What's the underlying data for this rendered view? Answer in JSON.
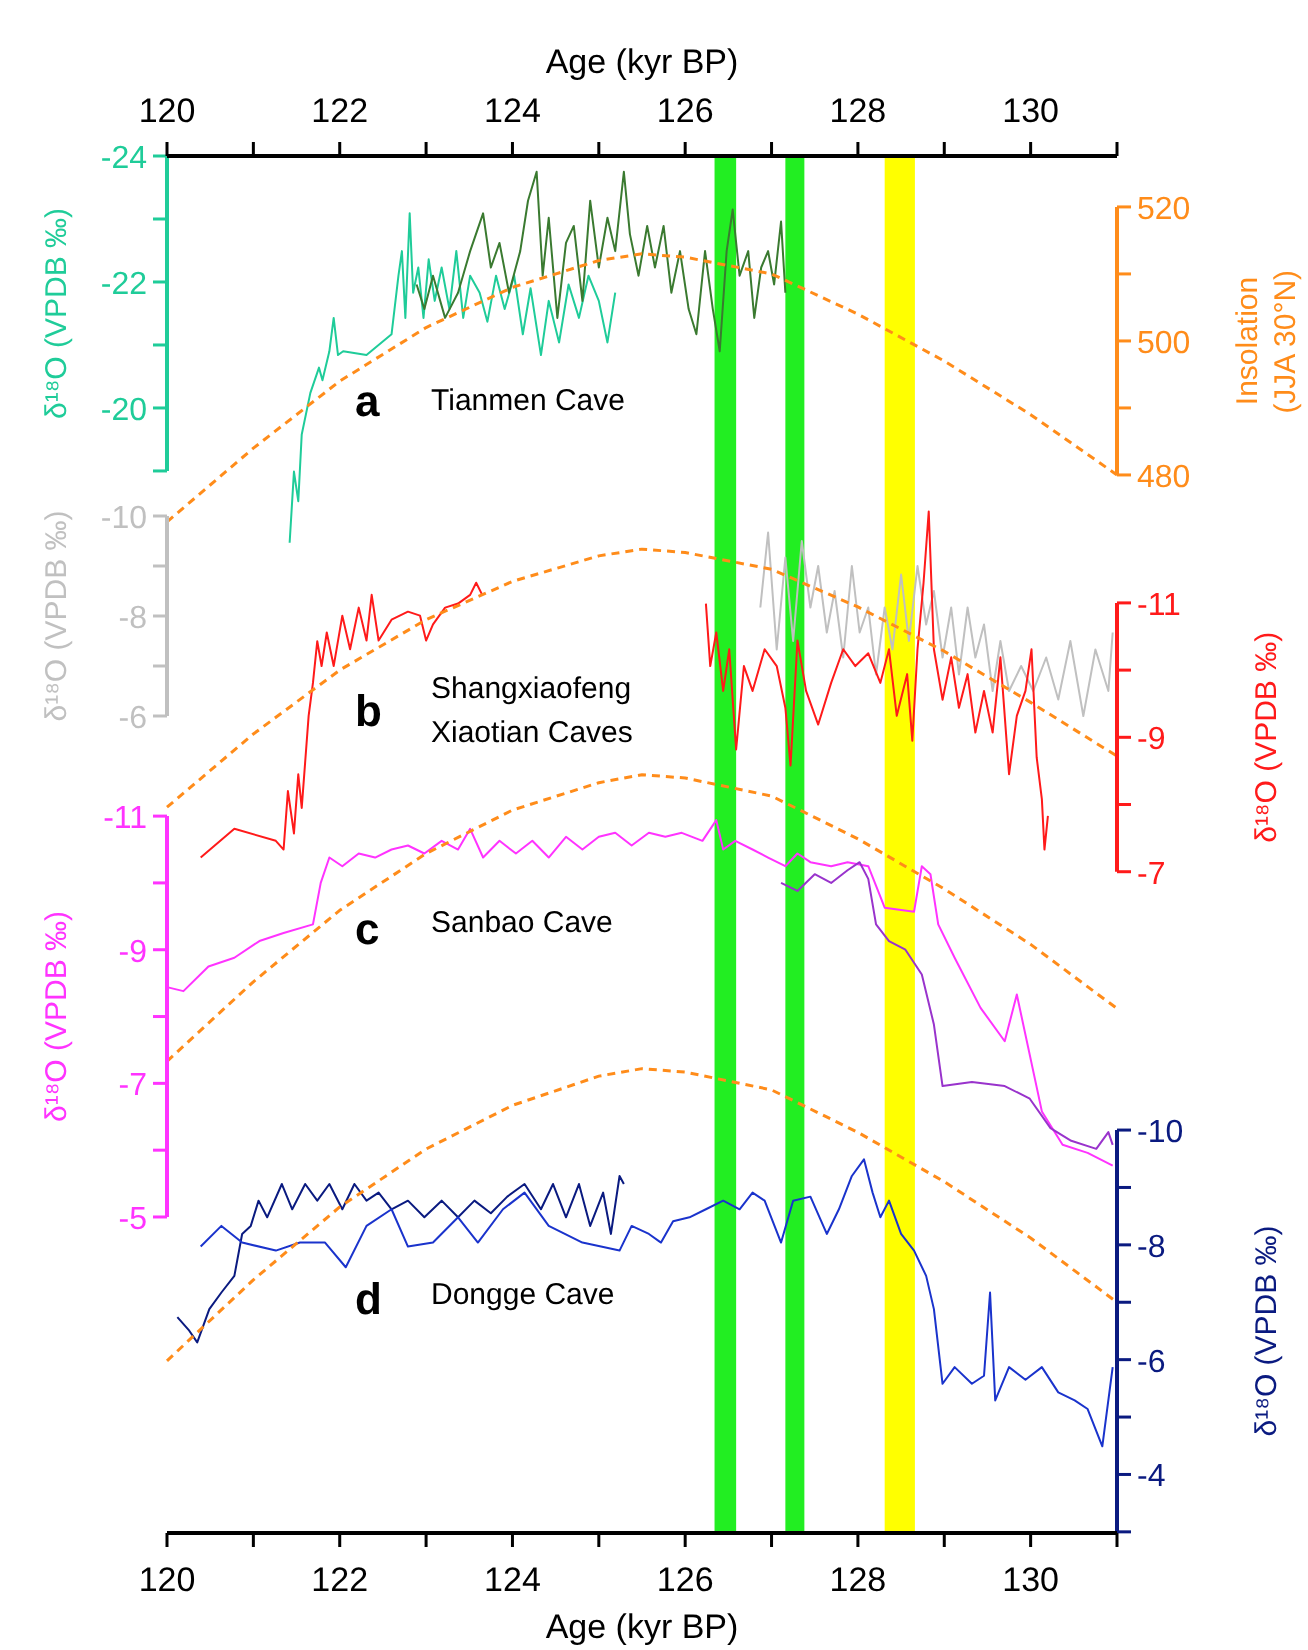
{
  "chart_data": [
    {
      "type": "line",
      "tick_labels": "y",
      "x2label": "Age (kyr BP)",
      "x2lim": [
        120,
        131
      ],
      "x2ticks": [
        120,
        {
          "value": 121,
          "label": null
        },
        122,
        {
          "value": 123,
          "label": null
        },
        124,
        {
          "value": 125,
          "label": null
        },
        126,
        {
          "value": 127,
          "label": null
        },
        128,
        {
          "value": 129,
          "label": null
        },
        130,
        {
          "value": 131,
          "label": null
        }
      ],
      "xlim": [
        120,
        131
      ],
      "ylabel": "δ¹⁸O (VPDB ‰)",
      "ylim": [
        -2.14,
        -24
      ],
      "yticks": [
        -24,
        {
          "value": -23,
          "label": null
        },
        -22,
        {
          "value": -21,
          "label": null
        },
        -20,
        {
          "value": -19,
          "label": null
        }
      ],
      "y2label": "Insolation\n(JJA 30°N)",
      "y2lim": [
        322.1,
        527.6
      ],
      "y2ticks": [
        480,
        {
          "value": 490,
          "label": null
        },
        500,
        {
          "value": 510,
          "label": null
        },
        520
      ],
      "annotations": [
        "a",
        "Tianmen Cave"
      ],
      "series": [
        {
          "color": "#1fcc99",
          "line_style": "solid",
          "x": [
            121.42,
            121.47,
            121.52,
            121.56,
            121.66,
            121.76,
            121.8,
            121.88,
            121.93,
            121.98,
            122.04,
            122.31,
            122.6,
            122.68,
            122.72,
            122.76,
            122.81,
            122.85,
            122.91,
            122.97,
            123.03,
            123.1,
            123.18,
            123.27,
            123.35,
            123.43,
            123.51,
            123.62,
            123.71,
            123.81,
            123.91,
            124.02,
            124.12,
            124.21,
            124.33,
            124.42,
            124.54,
            124.65,
            124.77,
            124.88,
            125.0,
            125.1,
            125.19
          ],
          "values": [
            -17.86,
            -18.99,
            -18.52,
            -19.58,
            -20.24,
            -20.64,
            -20.44,
            -20.9,
            -21.43,
            -20.84,
            -20.9,
            -20.84,
            -21.17,
            -22.1,
            -22.49,
            -21.43,
            -23.09,
            -21.83,
            -22.23,
            -21.43,
            -22.36,
            -21.7,
            -22.23,
            -21.57,
            -22.49,
            -21.43,
            -22.1,
            -21.83,
            -21.37,
            -22.1,
            -21.57,
            -22.1,
            -21.17,
            -21.9,
            -20.84,
            -21.7,
            -21.04,
            -21.96,
            -21.43,
            -22.1,
            -21.7,
            -21.04,
            -21.83
          ]
        },
        {
          "color": "#3a7a30",
          "line_style": "solid",
          "x": [
            122.89,
            122.98,
            123.08,
            123.22,
            123.37,
            123.51,
            123.66,
            123.75,
            123.85,
            123.96,
            124.09,
            124.18,
            124.28,
            124.35,
            124.42,
            124.52,
            124.62,
            124.71,
            124.81,
            124.9,
            125.0,
            125.1,
            125.19,
            125.29,
            125.36,
            125.46,
            125.56,
            125.65,
            125.75,
            125.84,
            125.94,
            126.04,
            126.13,
            126.23,
            126.32,
            126.4,
            126.48,
            126.55,
            126.63,
            126.73,
            126.8,
            126.88,
            126.96,
            127.03,
            127.11,
            127.16
          ],
          "values": [
            -21.96,
            -21.57,
            -22.1,
            -21.43,
            -21.83,
            -22.49,
            -23.09,
            -22.23,
            -22.62,
            -21.83,
            -22.49,
            -23.29,
            -23.75,
            -22.1,
            -23.02,
            -21.43,
            -22.62,
            -22.89,
            -21.7,
            -23.29,
            -22.23,
            -23.02,
            -22.49,
            -23.75,
            -22.76,
            -22.1,
            -22.89,
            -22.23,
            -22.89,
            -21.83,
            -22.49,
            -21.57,
            -21.17,
            -22.49,
            -21.57,
            -20.9,
            -22.49,
            -23.15,
            -22.1,
            -22.49,
            -21.43,
            -22.23,
            -22.49,
            -21.96,
            -22.96,
            -21.83
          ]
        },
        {
          "color": "#ff8c1a",
          "axis": "y2",
          "line_style": "dashed",
          "x": [
            120,
            121,
            122,
            123,
            124,
            125,
            125.5,
            126,
            127,
            128,
            129,
            130,
            131
          ],
          "values": [
            473,
            484,
            494,
            502,
            508,
            512,
            513,
            512.5,
            510,
            504,
            497,
            489,
            480
          ]
        }
      ]
    },
    {
      "type": "line",
      "tick_labels": "y",
      "xlim": [
        120,
        131
      ],
      "ylabel": "δ¹⁸O (VPDB ‰)",
      "ylim": [
        10.34,
        -17.2
      ],
      "yticks": [
        -10,
        {
          "value": -9,
          "label": null
        },
        -8,
        {
          "value": -7,
          "label": null
        },
        -6
      ],
      "y2label": "δ¹⁸O (VPDB ‰)",
      "y2lim": [
        2.84,
        -17.65
      ],
      "y2ticks": [
        -11,
        {
          "value": -10,
          "label": null
        },
        -9,
        {
          "value": -8,
          "label": null
        },
        -7
      ],
      "annotations": [
        "b",
        "Shangxiaofeng",
        "Xiaotian Caves"
      ],
      "series": [
        {
          "color": "#c0c0c0",
          "line_style": "solid",
          "x": [
            126.87,
            126.96,
            127.06,
            127.16,
            127.25,
            127.35,
            127.45,
            127.54,
            127.64,
            127.73,
            127.83,
            127.93,
            128.02,
            128.12,
            128.21,
            128.31,
            128.4,
            128.5,
            128.59,
            128.69,
            128.79,
            128.88,
            128.98,
            129.08,
            129.17,
            129.27,
            129.36,
            129.46,
            129.56,
            129.65,
            129.75,
            129.89,
            130.03,
            130.18,
            130.32,
            130.46,
            130.61,
            130.75,
            130.9,
            130.95
          ],
          "values": [
            -8.17,
            -9.67,
            -7.33,
            -9.17,
            -7.5,
            -9.5,
            -8.17,
            -9.0,
            -7.67,
            -8.5,
            -7.17,
            -9.0,
            -7.67,
            -8.17,
            -6.83,
            -8.17,
            -7.33,
            -8.83,
            -7.5,
            -9.0,
            -7.83,
            -8.5,
            -7.17,
            -8.17,
            -6.83,
            -8.17,
            -7.17,
            -7.83,
            -6.5,
            -7.5,
            -6.5,
            -7.0,
            -6.5,
            -7.17,
            -6.33,
            -7.5,
            -6.0,
            -7.33,
            -6.5,
            -7.67
          ]
        },
        {
          "color": "#ff1a1a",
          "axis": "y2",
          "line_style": "solid",
          "x": [
            120.39,
            120.78,
            121.26,
            121.35,
            121.4,
            121.47,
            121.52,
            121.56,
            121.64,
            121.69,
            121.74,
            121.79,
            121.85,
            121.93,
            122.03,
            122.12,
            122.22,
            122.31,
            122.37,
            122.45,
            122.6,
            122.79,
            122.93,
            123.0,
            123.08,
            123.22,
            123.37,
            123.51,
            123.58,
            123.65,
            123.9,
            126.24,
            126.29,
            126.36,
            126.44,
            126.51,
            126.59,
            126.68,
            126.78,
            126.92,
            127.06,
            127.16,
            127.22,
            127.3,
            127.4,
            127.54,
            127.69,
            127.83,
            127.97,
            128.12,
            128.26,
            128.36,
            128.45,
            128.57,
            128.63,
            128.69,
            128.76,
            128.82,
            128.88,
            128.98,
            129.08,
            129.17,
            129.27,
            129.36,
            129.46,
            129.56,
            129.65,
            129.75,
            129.84,
            129.94,
            130.01,
            130.07,
            130.13,
            130.16,
            130.2
          ],
          "values": [
            -7.21,
            -7.64,
            -7.46,
            -7.33,
            -8.2,
            -7.57,
            -8.45,
            -7.95,
            -9.32,
            -9.81,
            -10.43,
            -10.06,
            -10.56,
            -10.06,
            -10.81,
            -10.31,
            -10.93,
            -10.44,
            -11.12,
            -10.44,
            -10.75,
            -10.87,
            -10.81,
            -10.44,
            -10.68,
            -10.93,
            -10.99,
            -11.12,
            -11.3,
            -11.12,
            null,
            -10.99,
            -10.06,
            -10.56,
            -9.69,
            -10.31,
            -8.82,
            -10.06,
            -9.69,
            -10.31,
            -10.06,
            -9.44,
            -8.58,
            -10.44,
            -9.69,
            -9.19,
            -9.81,
            -10.31,
            -10.06,
            -10.25,
            -9.81,
            -10.31,
            -9.32,
            -9.94,
            -8.95,
            -10.31,
            -11.3,
            -12.36,
            -10.31,
            -9.56,
            -10.19,
            -9.44,
            -9.94,
            -9.07,
            -9.69,
            -9.07,
            -10.19,
            -8.45,
            -9.32,
            -9.69,
            -10.31,
            -8.7,
            -8.08,
            -7.33,
            -7.83
          ]
        },
        {
          "color": "#ff8c1a",
          "axis": "y2",
          "line_style": "dashed",
          "x": [
            120,
            121,
            122,
            123,
            124,
            125,
            125.5,
            126,
            127,
            128,
            129,
            130,
            131
          ],
          "values": [
            -7.96,
            -9.05,
            -10.0,
            -10.75,
            -11.32,
            -11.7,
            -11.8,
            -11.75,
            -11.5,
            -10.94,
            -10.28,
            -9.52,
            -8.72
          ]
        }
      ]
    },
    {
      "type": "line",
      "tick_labels": "y",
      "xlim": [
        120,
        131
      ],
      "ylabel": "δ¹⁸O (VPDB ‰)",
      "ylim": [
        -0.27,
        -20.88
      ],
      "yticks": [
        -11,
        {
          "value": -10,
          "label": null
        },
        -9,
        {
          "value": -8,
          "label": null
        },
        -7,
        {
          "value": -6,
          "label": null
        },
        -5
      ],
      "annotations": [
        "c",
        "Sanbao Cave"
      ],
      "series": [
        {
          "color": "#ff33ff",
          "line_style": "solid",
          "x": [
            120.0,
            120.19,
            120.48,
            120.78,
            121.07,
            121.35,
            121.69,
            121.78,
            121.88,
            122.03,
            122.22,
            122.41,
            122.6,
            122.79,
            122.98,
            123.18,
            123.37,
            123.51,
            123.66,
            123.85,
            124.04,
            124.23,
            124.42,
            124.62,
            124.81,
            125.0,
            125.19,
            125.38,
            125.58,
            125.77,
            125.96,
            126.2,
            126.36,
            126.44,
            126.58,
            126.78,
            126.96,
            127.16,
            127.3,
            127.45,
            127.69,
            127.88,
            128.12,
            128.31,
            128.65,
            128.74,
            128.84,
            128.93,
            129.12,
            129.42,
            129.7,
            129.84,
            130.13,
            130.37,
            130.66,
            130.95
          ],
          "values": [
            -8.44,
            -8.38,
            -8.75,
            -8.88,
            -9.13,
            -9.25,
            -9.38,
            -10.0,
            -10.38,
            -10.25,
            -10.44,
            -10.38,
            -10.5,
            -10.56,
            -10.44,
            -10.63,
            -10.5,
            -10.81,
            -10.38,
            -10.63,
            -10.44,
            -10.63,
            -10.38,
            -10.69,
            -10.5,
            -10.69,
            -10.75,
            -10.56,
            -10.75,
            -10.69,
            -10.75,
            -10.63,
            -10.94,
            -10.5,
            -10.63,
            -10.5,
            -10.38,
            -10.25,
            -10.44,
            -10.31,
            -10.25,
            -10.31,
            -10.25,
            -9.63,
            -9.57,
            -10.25,
            -10.13,
            -9.38,
            -8.88,
            -8.13,
            -7.63,
            -8.33,
            -6.58,
            -6.08,
            -5.96,
            -5.77
          ]
        },
        {
          "color": "#9933cc",
          "line_style": "solid",
          "x": [
            127.11,
            127.3,
            127.5,
            127.69,
            127.88,
            128.02,
            128.12,
            128.21,
            128.36,
            128.55,
            128.74,
            128.88,
            128.98,
            129.32,
            129.7,
            129.99,
            130.23,
            130.47,
            130.76,
            130.9,
            130.95
          ],
          "values": [
            -10.0,
            -9.88,
            -10.13,
            -10.0,
            -10.19,
            -10.31,
            -10.06,
            -9.38,
            -9.13,
            -9.0,
            -8.63,
            -7.88,
            -6.96,
            -7.02,
            -6.96,
            -6.77,
            -6.33,
            -6.14,
            -6.02,
            -6.27,
            -6.08
          ]
        },
        {
          "color": "#ff8c1a",
          "line_style": "dashed",
          "x": [
            120,
            121,
            122,
            123,
            124,
            125,
            125.5,
            126,
            127,
            128,
            129,
            130,
            131
          ],
          "values": [
            -7.33,
            -8.52,
            -9.59,
            -10.44,
            -11.09,
            -11.5,
            -11.62,
            -11.57,
            -11.3,
            -10.66,
            -9.91,
            -9.08,
            -8.12
          ]
        }
      ]
    },
    {
      "type": "line",
      "xlabel": "Age (kyr BP)",
      "xlim": [
        120,
        131
      ],
      "xticks": [
        120,
        {
          "value": 121,
          "label": null
        },
        122,
        {
          "value": 123,
          "label": null
        },
        124,
        {
          "value": 125,
          "label": null
        },
        126,
        {
          "value": 127,
          "label": null
        },
        128,
        {
          "value": 129,
          "label": null
        },
        130,
        {
          "value": 131,
          "label": null
        }
      ],
      "y2label": "δ¹⁸O (VPDB ‰)",
      "y2lim": [
        -2.98,
        -26.97
      ],
      "y2ticks": [
        -10,
        {
          "value": -9,
          "label": null
        },
        -8,
        {
          "value": -7,
          "label": null
        },
        -6,
        {
          "value": -5,
          "label": null
        },
        -4,
        {
          "value": -3,
          "label": null
        }
      ],
      "bands": [
        {
          "axis": "x",
          "from": 126.34,
          "to": 126.59,
          "color": "#22ee22"
        },
        {
          "axis": "x",
          "from": 127.16,
          "to": 127.38,
          "color": "#22ee22"
        },
        {
          "axis": "x",
          "from": 128.31,
          "to": 128.66,
          "color": "#ffff00"
        }
      ],
      "annotations": [
        "d",
        "Dongge Cave"
      ],
      "series": [
        {
          "color": "#0a1a80",
          "axis": "y2",
          "line_style": "solid",
          "x": [
            120.12,
            120.25,
            120.35,
            120.49,
            120.63,
            120.78,
            120.87,
            120.97,
            121.06,
            121.16,
            121.33,
            121.45,
            121.6,
            121.74,
            121.88,
            122.03,
            122.17,
            122.31,
            122.45,
            122.6,
            122.79,
            122.98,
            123.18,
            123.37,
            123.56,
            123.75,
            123.94,
            124.14,
            124.33,
            124.47,
            124.62,
            124.77,
            124.9,
            125.05,
            125.14,
            125.24,
            125.29
          ],
          "values": [
            -6.74,
            -6.52,
            -6.3,
            -6.88,
            -7.17,
            -7.46,
            -8.19,
            -8.33,
            -8.77,
            -8.48,
            -9.06,
            -8.62,
            -9.06,
            -8.77,
            -9.06,
            -8.62,
            -9.06,
            -8.77,
            -8.91,
            -8.62,
            -8.77,
            -8.48,
            -8.77,
            -8.48,
            -8.77,
            -8.55,
            -8.84,
            -9.06,
            -8.62,
            -9.06,
            -8.48,
            -9.06,
            -8.33,
            -8.91,
            -8.19,
            -9.2,
            -9.06
          ]
        },
        {
          "color": "#1a33cc",
          "axis": "y2",
          "line_style": "solid",
          "x": [
            120.39,
            120.63,
            120.87,
            121.26,
            121.54,
            121.83,
            122.07,
            122.31,
            122.6,
            122.79,
            123.08,
            123.37,
            123.6,
            123.89,
            124.14,
            124.42,
            124.81,
            125.24,
            125.38,
            125.58,
            125.72,
            125.86,
            126.05,
            126.24,
            126.44,
            126.63,
            126.78,
            126.92,
            127.11,
            127.25,
            127.45,
            127.64,
            127.78,
            127.93,
            128.07,
            128.17,
            128.26,
            128.36,
            128.5,
            128.65,
            128.79,
            128.88,
            128.98,
            129.12,
            129.32,
            129.46,
            129.53,
            129.59,
            129.75,
            129.94,
            130.13,
            130.32,
            130.51,
            130.66,
            130.83,
            130.95
          ],
          "values": [
            -7.97,
            -8.33,
            -8.04,
            -7.9,
            -8.04,
            -8.04,
            -7.61,
            -8.33,
            -8.62,
            -7.97,
            -8.04,
            -8.48,
            -8.04,
            -8.62,
            -8.91,
            -8.33,
            -8.04,
            -7.9,
            -8.33,
            -8.19,
            -8.04,
            -8.41,
            -8.48,
            -8.62,
            -8.77,
            -8.62,
            -8.91,
            -8.77,
            -8.04,
            -8.77,
            -8.84,
            -8.19,
            -8.62,
            -9.2,
            -9.49,
            -8.91,
            -8.48,
            -8.77,
            -8.19,
            -7.9,
            -7.46,
            -6.88,
            -5.58,
            -5.87,
            -5.58,
            -5.72,
            -7.17,
            -5.29,
            -5.87,
            -5.65,
            -5.87,
            -5.43,
            -5.29,
            -5.14,
            -4.49,
            -5.87
          ]
        },
        {
          "color": "#ff8c1a",
          "axis": "y2",
          "line_style": "dashed",
          "x": [
            120,
            121,
            122,
            123,
            124,
            125,
            125.5,
            126,
            127,
            128,
            129,
            130,
            131
          ],
          "values": [
            -5.98,
            -7.39,
            -8.66,
            -9.67,
            -10.43,
            -10.94,
            -11.07,
            -11.01,
            -10.7,
            -9.96,
            -9.1,
            -8.12,
            -7.0
          ]
        }
      ]
    }
  ]
}
